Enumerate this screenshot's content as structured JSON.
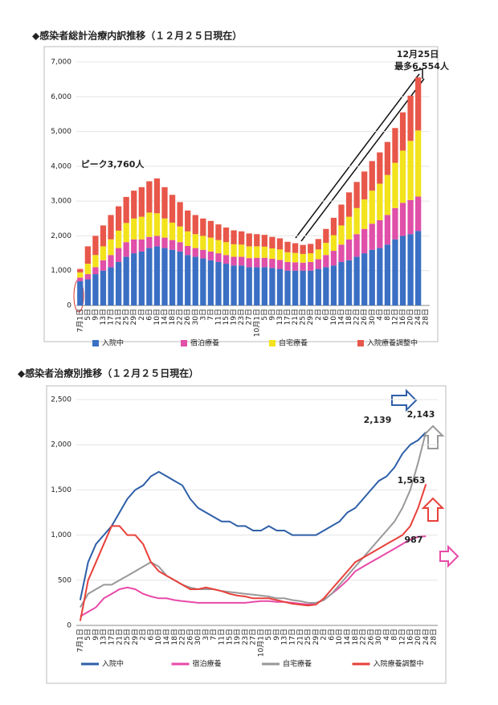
{
  "chart_data": [
    {
      "type": "bar",
      "stacked": true,
      "title": "◆感染者総計治療内訳推移（１２月２５日現在）",
      "categories": [
        "7月1日",
        "5日",
        "9日",
        "13日",
        "17日",
        "21日",
        "25日",
        "29日",
        "2日",
        "6日",
        "10日",
        "14日",
        "18日",
        "22日",
        "26日",
        "30日",
        "3日",
        "7日",
        "11日",
        "15日",
        "19日",
        "23日",
        "27日",
        "10月1日",
        "5日",
        "9日",
        "13日",
        "17日",
        "21日",
        "25日",
        "29日",
        "2日",
        "6日",
        "10日",
        "14日",
        "18日",
        "22日",
        "26日",
        "30日",
        "4日",
        "8日",
        "12日",
        "16日",
        "20日",
        "24日",
        "28日"
      ],
      "series": [
        {
          "name": "入院中",
          "color": "#3a6fc4",
          "values": [
            700,
            750,
            900,
            1000,
            1100,
            1250,
            1400,
            1500,
            1550,
            1650,
            1700,
            1650,
            1600,
            1550,
            1450,
            1400,
            1350,
            1300,
            1250,
            1200,
            1150,
            1150,
            1100,
            1100,
            1100,
            1080,
            1050,
            1000,
            1000,
            1000,
            1000,
            1050,
            1100,
            1150,
            1250,
            1300,
            1400,
            1500,
            1600,
            1650,
            1750,
            1900,
            2000,
            2050,
            2143,
            null
          ]
        },
        {
          "name": "宿泊療養",
          "color": "#e04fa8",
          "values": [
            100,
            150,
            200,
            300,
            350,
            400,
            420,
            400,
            350,
            320,
            300,
            300,
            280,
            270,
            260,
            250,
            250,
            250,
            250,
            250,
            250,
            250,
            260,
            270,
            270,
            260,
            260,
            250,
            240,
            230,
            250,
            280,
            350,
            420,
            500,
            600,
            650,
            700,
            750,
            800,
            850,
            900,
            950,
            980,
            987,
            null
          ]
        },
        {
          "name": "自宅療養",
          "color": "#f2e31c",
          "values": [
            150,
            300,
            350,
            400,
            450,
            500,
            550,
            600,
            650,
            700,
            650,
            550,
            500,
            450,
            420,
            400,
            400,
            400,
            380,
            370,
            360,
            350,
            340,
            330,
            320,
            300,
            300,
            280,
            270,
            250,
            250,
            280,
            350,
            450,
            550,
            650,
            750,
            850,
            950,
            1050,
            1150,
            1300,
            1500,
            1700,
            1900,
            null
          ]
        },
        {
          "name": "入院療養調整中",
          "color": "#e8574a",
          "values": [
            100,
            500,
            550,
            600,
            700,
            700,
            750,
            800,
            850,
            900,
            1000,
            900,
            800,
            700,
            600,
            550,
            500,
            480,
            450,
            420,
            400,
            380,
            370,
            350,
            340,
            330,
            320,
            300,
            280,
            260,
            270,
            300,
            400,
            500,
            600,
            700,
            750,
            800,
            850,
            900,
            950,
            1000,
            1100,
            1300,
            1524,
            null
          ]
        }
      ],
      "ylim": [
        0,
        7000
      ],
      "yticks": [
        0,
        {
          "value": 1000,
          "label": "1,000"
        },
        {
          "value": 2000,
          "label": "2,000"
        },
        {
          "value": 3000,
          "label": "3,000"
        },
        {
          "value": 4000,
          "label": "4,000"
        },
        {
          "value": 5000,
          "label": "5,000"
        },
        {
          "value": 6000,
          "label": "6,000"
        },
        {
          "value": 7000,
          "label": "7,000"
        }
      ],
      "legend": "bottom",
      "annotations": [
        "ピーク3,760人",
        "12月25日",
        "最多6,554人"
      ]
    },
    {
      "type": "line",
      "title": "◆感染者治療別推移（１２月２５日現在）",
      "categories": [
        "7月1日",
        "5日",
        "9日",
        "13日",
        "17日",
        "21日",
        "25日",
        "29日",
        "2日",
        "6日",
        "10日",
        "14日",
        "18日",
        "22日",
        "26日",
        "30日",
        "3日",
        "7日",
        "11日",
        "15日",
        "19日",
        "23日",
        "27日",
        "10月1日",
        "5日",
        "9日",
        "13日",
        "17日",
        "21日",
        "25日",
        "29日",
        "2日",
        "6日",
        "10日",
        "14日",
        "18日",
        "22日",
        "26日",
        "30日",
        "4日",
        "8日",
        "12日",
        "16日",
        "20日",
        "24日",
        "28日"
      ],
      "series": [
        {
          "name": "入院中",
          "color": "#2e5fa8",
          "values": [
            280,
            700,
            900,
            1000,
            1100,
            1250,
            1400,
            1500,
            1550,
            1650,
            1700,
            1650,
            1600,
            1550,
            1400,
            1300,
            1250,
            1200,
            1150,
            1150,
            1100,
            1100,
            1050,
            1050,
            1100,
            1050,
            1050,
            1000,
            1000,
            1000,
            1000,
            1050,
            1100,
            1150,
            1250,
            1300,
            1400,
            1500,
            1600,
            1650,
            1750,
            1900,
            2000,
            2050,
            2139,
            null
          ]
        },
        {
          "name": "宿泊療養",
          "color": "#e84aa8",
          "values": [
            100,
            150,
            200,
            300,
            350,
            400,
            420,
            400,
            350,
            320,
            300,
            300,
            280,
            270,
            260,
            250,
            250,
            250,
            250,
            250,
            250,
            250,
            260,
            270,
            270,
            260,
            260,
            250,
            240,
            230,
            250,
            280,
            350,
            420,
            500,
            600,
            650,
            700,
            750,
            800,
            850,
            900,
            950,
            980,
            987,
            null
          ]
        },
        {
          "name": "自宅療養",
          "color": "#999999",
          "values": [
            200,
            350,
            400,
            450,
            450,
            500,
            550,
            600,
            650,
            700,
            650,
            550,
            500,
            450,
            420,
            400,
            400,
            400,
            380,
            370,
            360,
            350,
            340,
            330,
            320,
            300,
            300,
            280,
            270,
            250,
            250,
            280,
            350,
            450,
            550,
            650,
            750,
            850,
            950,
            1050,
            1150,
            1300,
            1500,
            1800,
            2143,
            null
          ]
        },
        {
          "name": "入院療養調整中",
          "color": "#e8403a",
          "values": [
            50,
            500,
            700,
            900,
            1100,
            1100,
            1000,
            1000,
            900,
            700,
            600,
            550,
            500,
            450,
            400,
            400,
            420,
            400,
            380,
            350,
            330,
            320,
            300,
            300,
            300,
            280,
            260,
            240,
            230,
            220,
            230,
            300,
            400,
            500,
            600,
            700,
            750,
            800,
            850,
            900,
            950,
            1000,
            1100,
            1300,
            1563,
            null
          ]
        }
      ],
      "ylim": [
        0,
        2500
      ],
      "yticks": [
        0,
        500,
        {
          "value": 1000,
          "label": "1,000"
        },
        {
          "value": 1500,
          "label": "1,500"
        },
        {
          "value": 2000,
          "label": "2,000"
        },
        {
          "value": 2500,
          "label": "2,500"
        }
      ],
      "legend": "bottom",
      "annotations": [
        "2,139",
        "2,143",
        "1,563",
        "987"
      ]
    }
  ]
}
